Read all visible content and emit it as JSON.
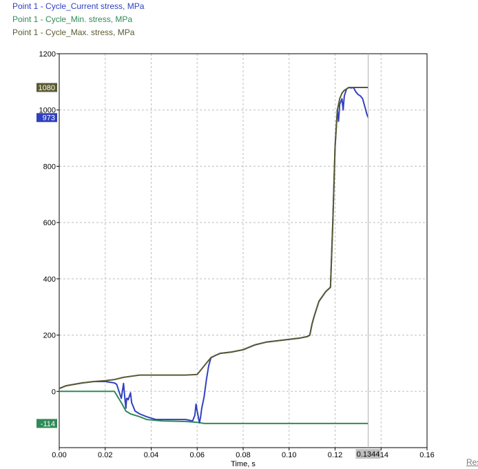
{
  "chart_data": {
    "type": "line",
    "title": "",
    "xlabel": "Time, s",
    "ylabel": "",
    "xlim": [
      0,
      0.16
    ],
    "ylim": [
      -200,
      1200
    ],
    "x_ticks": [
      "0.00",
      "0.02",
      "0.04",
      "0.06",
      "0.08",
      "0.10",
      "0.12",
      "0.14",
      "0.16"
    ],
    "y_ticks": [
      "0",
      "200",
      "400",
      "600",
      "800",
      "1000",
      "1200"
    ],
    "grid": true,
    "legend_position": "top-left",
    "cursor_x": 0.1344,
    "cursor_label": "0.1344",
    "series": [
      {
        "name": "Point 1 - Cycle_Current stress, MPa",
        "color": "#3040c0",
        "value_label": "973",
        "value_y": 973,
        "x": [
          0.0,
          0.003,
          0.01,
          0.015,
          0.02,
          0.024,
          0.025,
          0.027,
          0.028,
          0.0285,
          0.029,
          0.0293,
          0.0297,
          0.03,
          0.031,
          0.0315,
          0.032,
          0.033,
          0.035,
          0.038,
          0.04,
          0.042,
          0.045,
          0.05,
          0.055,
          0.058,
          0.059,
          0.0595,
          0.06,
          0.061,
          0.0615,
          0.062,
          0.063,
          0.064,
          0.065,
          0.066,
          0.068,
          0.07,
          0.075,
          0.08,
          0.085,
          0.09,
          0.095,
          0.1,
          0.105,
          0.108,
          0.109,
          0.11,
          0.111,
          0.113,
          0.116,
          0.118,
          0.119,
          0.12,
          0.121,
          0.1215,
          0.122,
          0.123,
          0.1235,
          0.124,
          0.125,
          0.126,
          0.127,
          0.128,
          0.129,
          0.13,
          0.131,
          0.132,
          0.133,
          0.1338,
          0.1344
        ],
        "y": [
          10,
          20,
          30,
          35,
          35,
          30,
          25,
          -25,
          28,
          -20,
          -60,
          -25,
          -25,
          -30,
          -5,
          -40,
          -50,
          -70,
          -80,
          -90,
          -95,
          -100,
          -100,
          -100,
          -100,
          -105,
          -85,
          -45,
          -70,
          -112,
          -90,
          -60,
          -20,
          40,
          90,
          120,
          128,
          135,
          140,
          148,
          165,
          175,
          180,
          185,
          190,
          195,
          200,
          240,
          270,
          320,
          355,
          370,
          600,
          870,
          1000,
          960,
          1020,
          1040,
          1000,
          1050,
          1075,
          1080,
          1078,
          1080,
          1065,
          1055,
          1050,
          1040,
          1010,
          985,
          973
        ]
      },
      {
        "name": "Point 1 - Cycle_Min. stress, MPa",
        "color": "#2e8b57",
        "value_label": "-114",
        "value_y": -114,
        "x": [
          0.0,
          0.024,
          0.027,
          0.029,
          0.031,
          0.035,
          0.038,
          0.045,
          0.055,
          0.06,
          0.063,
          0.07,
          0.1,
          0.1344
        ],
        "y": [
          0,
          0,
          -40,
          -70,
          -80,
          -90,
          -100,
          -105,
          -107,
          -110,
          -114,
          -114,
          -114,
          -114
        ]
      },
      {
        "name": "Point 1 - Cycle_Max. stress, MPa",
        "color": "#5a5a32",
        "value_label": "1080",
        "value_y": 1080,
        "x": [
          0.0,
          0.003,
          0.01,
          0.015,
          0.02,
          0.024,
          0.028,
          0.035,
          0.045,
          0.055,
          0.06,
          0.062,
          0.064,
          0.066,
          0.068,
          0.07,
          0.075,
          0.08,
          0.085,
          0.09,
          0.095,
          0.1,
          0.105,
          0.108,
          0.109,
          0.11,
          0.111,
          0.113,
          0.116,
          0.118,
          0.119,
          0.12,
          0.121,
          0.122,
          0.123,
          0.124,
          0.125,
          0.126,
          0.1344
        ],
        "y": [
          10,
          20,
          30,
          35,
          38,
          42,
          50,
          58,
          58,
          58,
          60,
          80,
          100,
          120,
          128,
          135,
          140,
          148,
          165,
          175,
          180,
          185,
          190,
          195,
          200,
          240,
          270,
          320,
          355,
          370,
          600,
          870,
          1000,
          1040,
          1060,
          1070,
          1075,
          1080,
          1080
        ]
      }
    ]
  },
  "corner_link": "Res"
}
